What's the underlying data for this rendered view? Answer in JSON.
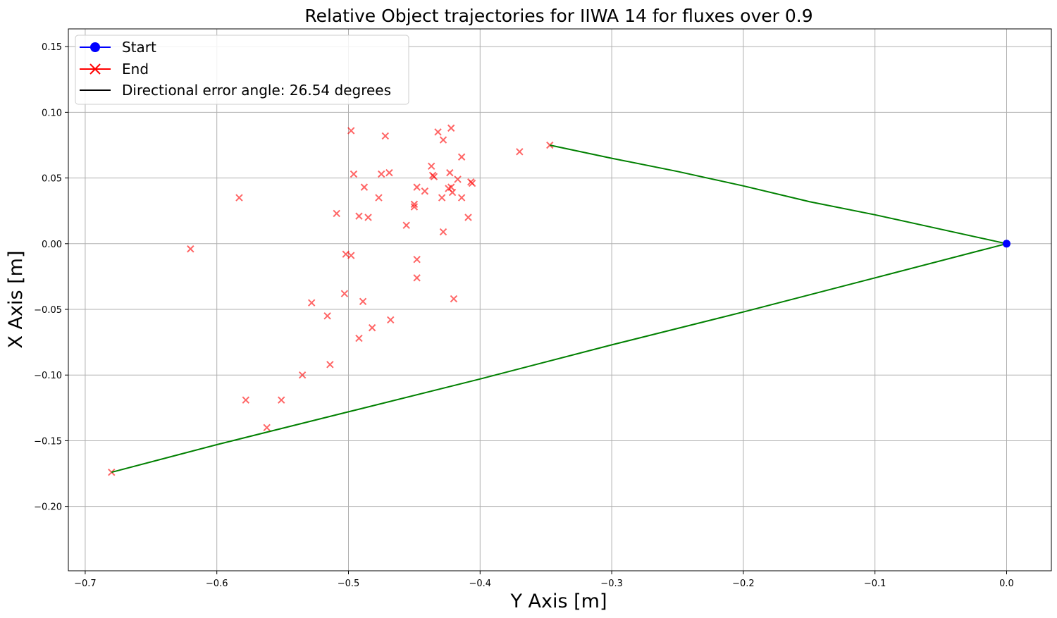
{
  "chart_data": {
    "type": "scatter",
    "title": "Relative Object trajectories for IIWA 14 for fluxes over 0.9",
    "xlabel": "Y Axis [m]",
    "ylabel": "X Axis [m]",
    "xlim": [
      -0.7128,
      0.034
    ],
    "ylim": [
      -0.249,
      0.1635
    ],
    "grid": true,
    "legend_position": "top-left",
    "x_ticks": [
      -0.7,
      -0.6,
      -0.5,
      -0.4,
      -0.3,
      -0.2,
      -0.1,
      0.0
    ],
    "x_tick_labels": [
      "−0.7",
      "−0.6",
      "−0.5",
      "−0.4",
      "−0.3",
      "−0.2",
      "−0.1",
      "0.0"
    ],
    "y_ticks": [
      0.15,
      0.1,
      0.05,
      0.0,
      -0.05,
      -0.1,
      -0.15,
      -0.2
    ],
    "y_tick_labels": [
      "0.15",
      "0.10",
      "0.05",
      "0.00",
      "−0.05",
      "−0.10",
      "−0.15",
      "−0.20"
    ],
    "legend": [
      {
        "label": "Start",
        "color": "#0000ff",
        "marker": "circle"
      },
      {
        "label": "End",
        "color": "#ff0000",
        "marker": "x"
      },
      {
        "label": "Directional error angle: 26.54 degrees",
        "color": "#000000",
        "marker": "line"
      }
    ],
    "trajectory_color": "#008000",
    "start_color": "#0000ff",
    "end_color": "#ff0000",
    "trajectories": [
      [
        [
          0.0,
          0.0
        ],
        [
          -0.05,
          0.011
        ],
        [
          -0.1,
          0.022
        ],
        [
          -0.15,
          0.032
        ],
        [
          -0.2,
          0.044
        ],
        [
          -0.25,
          0.055
        ],
        [
          -0.3,
          0.065
        ],
        [
          -0.347,
          0.075
        ]
      ],
      [
        [
          0.0,
          0.0
        ],
        [
          -0.1,
          -0.026
        ],
        [
          -0.2,
          -0.052
        ],
        [
          -0.3,
          -0.077
        ],
        [
          -0.4,
          -0.103
        ],
        [
          -0.5,
          -0.128
        ],
        [
          -0.6,
          -0.153
        ],
        [
          -0.68,
          -0.174
        ]
      ]
    ],
    "start": [
      0.0,
      0.0
    ],
    "end_points": [
      [
        -0.62,
        -0.004
      ],
      [
        -0.583,
        0.035
      ],
      [
        -0.578,
        -0.119
      ],
      [
        -0.562,
        -0.14
      ],
      [
        -0.551,
        -0.119
      ],
      [
        -0.535,
        -0.1
      ],
      [
        -0.528,
        -0.045
      ],
      [
        -0.516,
        -0.055
      ],
      [
        -0.514,
        -0.092
      ],
      [
        -0.509,
        0.023
      ],
      [
        -0.503,
        -0.038
      ],
      [
        -0.502,
        -0.008
      ],
      [
        -0.498,
        0.086
      ],
      [
        -0.498,
        -0.009
      ],
      [
        -0.496,
        0.053
      ],
      [
        -0.492,
        0.021
      ],
      [
        -0.492,
        -0.072
      ],
      [
        -0.489,
        -0.044
      ],
      [
        -0.488,
        0.043
      ],
      [
        -0.485,
        0.02
      ],
      [
        -0.482,
        -0.064
      ],
      [
        -0.477,
        0.035
      ],
      [
        -0.475,
        0.053
      ],
      [
        -0.472,
        0.082
      ],
      [
        -0.469,
        0.054
      ],
      [
        -0.468,
        -0.058
      ],
      [
        -0.456,
        0.014
      ],
      [
        -0.45,
        0.028
      ],
      [
        -0.45,
        0.03
      ],
      [
        -0.448,
        -0.012
      ],
      [
        -0.448,
        -0.026
      ],
      [
        -0.448,
        0.043
      ],
      [
        -0.442,
        0.04
      ],
      [
        -0.437,
        0.059
      ],
      [
        -0.436,
        0.052
      ],
      [
        -0.435,
        0.051
      ],
      [
        -0.432,
        0.085
      ],
      [
        -0.429,
        0.035
      ],
      [
        -0.428,
        0.009
      ],
      [
        -0.428,
        0.079
      ],
      [
        -0.424,
        0.042
      ],
      [
        -0.423,
        0.054
      ],
      [
        -0.422,
        0.043
      ],
      [
        -0.422,
        0.088
      ],
      [
        -0.421,
        0.039
      ],
      [
        -0.42,
        -0.042
      ],
      [
        -0.417,
        0.049
      ],
      [
        -0.414,
        0.035
      ],
      [
        -0.414,
        0.066
      ],
      [
        -0.409,
        0.02
      ],
      [
        -0.407,
        0.047
      ],
      [
        -0.406,
        0.046
      ],
      [
        -0.37,
        0.07
      ],
      [
        -0.347,
        0.075
      ],
      [
        -0.68,
        -0.174
      ]
    ]
  }
}
